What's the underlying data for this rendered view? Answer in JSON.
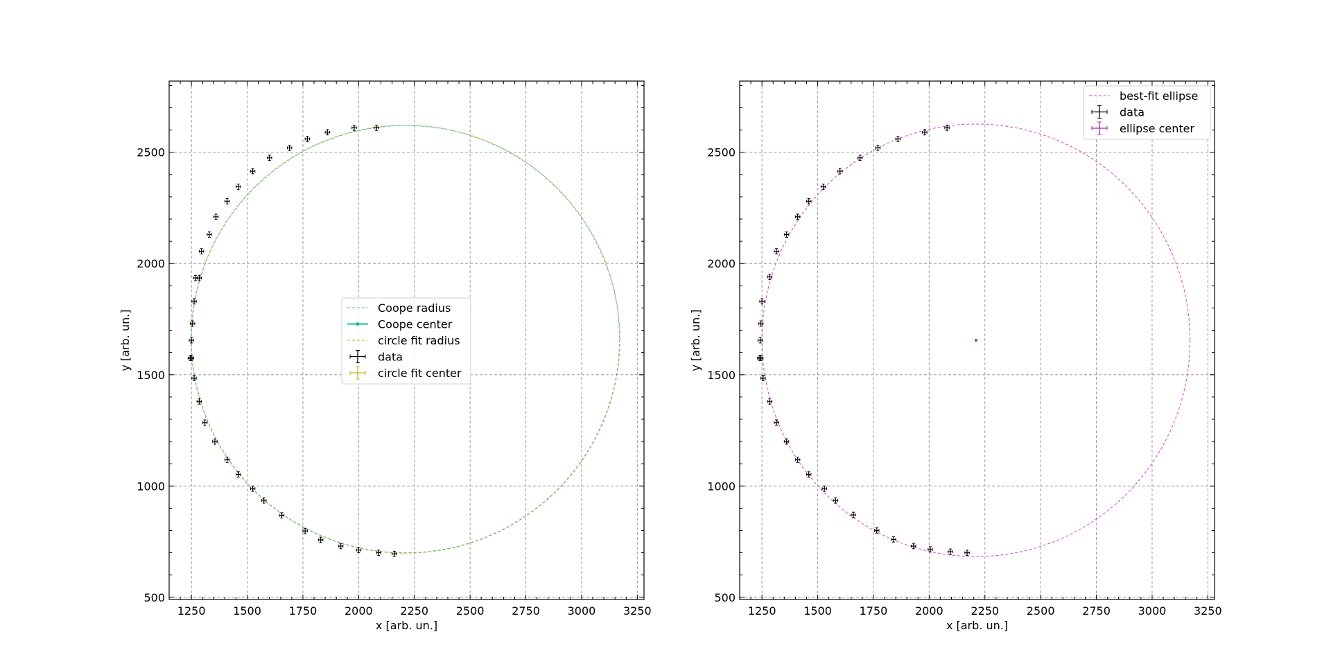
{
  "chart_data": [
    {
      "type": "scatter",
      "xlabel": "x [arb. un.]",
      "ylabel": "y [arb. un.]",
      "xlim": [
        1150,
        3280
      ],
      "ylim": [
        490,
        2820
      ],
      "xticks": [
        1250,
        1500,
        1750,
        2000,
        2250,
        2500,
        2750,
        3000,
        3250
      ],
      "yticks": [
        500,
        1000,
        1500,
        2000,
        2500
      ],
      "grid": true,
      "legend_position": "center",
      "series": [
        {
          "name": "Coope radius",
          "kind": "circle",
          "center": [
            2210,
            1660
          ],
          "radius": 960,
          "color": "#3fb9c9",
          "dash": "4,3"
        },
        {
          "name": "Coope center",
          "kind": "point",
          "x": [
            2210
          ],
          "y": [
            1660
          ],
          "color": "#17b8a6"
        },
        {
          "name": "circle fit radius",
          "kind": "circle",
          "center": [
            2210,
            1660
          ],
          "radius": 962,
          "color": "#b9b92b",
          "dash": "4,3"
        },
        {
          "name": "data",
          "kind": "errorbar",
          "color": "#000000",
          "x": [
            1245,
            1250,
            1255,
            1262,
            1268,
            1285,
            1295,
            1330,
            1360,
            1410,
            1460,
            1525,
            1600,
            1690,
            1770,
            1860,
            1980,
            2080,
            2160,
            2090,
            2000,
            1920,
            1830,
            1760,
            1655,
            1575,
            1525,
            1460,
            1410,
            1355,
            1310,
            1285,
            1262,
            1250
          ],
          "y": [
            1575,
            1655,
            1730,
            1830,
            1935,
            1935,
            2055,
            2130,
            2210,
            2280,
            2345,
            2415,
            2475,
            2520,
            2560,
            2590,
            2610,
            2610,
            695,
            700,
            712,
            730,
            758,
            798,
            868,
            935,
            988,
            1052,
            1118,
            1200,
            1285,
            1380,
            1485,
            1575
          ],
          "xerr": 10,
          "yerr": 12
        },
        {
          "name": "circle fit center",
          "kind": "errorbar-point",
          "x": [
            2210
          ],
          "y": [
            1660
          ],
          "color": "#c9b622"
        }
      ]
    },
    {
      "type": "scatter",
      "xlabel": "x [arb. un.]",
      "ylabel": "y [arb. un.]",
      "xlim": [
        1150,
        3280
      ],
      "ylim": [
        490,
        2820
      ],
      "xticks": [
        1250,
        1500,
        1750,
        2000,
        2250,
        2500,
        2750,
        3000,
        3250
      ],
      "yticks": [
        500,
        1000,
        1500,
        2000,
        2500
      ],
      "grid": true,
      "legend_position": "top-right",
      "series": [
        {
          "name": "best-fit ellipse",
          "kind": "ellipse",
          "center": [
            2210,
            1655
          ],
          "rx": 960,
          "ry": 972,
          "color": "#d63fd6",
          "dash": "4,3"
        },
        {
          "name": "data",
          "kind": "errorbar",
          "color": "#000000",
          "x": [
            1240,
            1242,
            1245,
            1250,
            1255,
            1285,
            1315,
            1360,
            1410,
            1460,
            1525,
            1600,
            1690,
            1770,
            1860,
            1980,
            2080,
            2170,
            2095,
            2005,
            1930,
            1840,
            1765,
            1660,
            1580,
            1530,
            1460,
            1410,
            1360,
            1315,
            1285,
            1255,
            1245
          ],
          "y": [
            1575,
            1655,
            1730,
            1830,
            1485,
            1940,
            2055,
            2130,
            2210,
            2280,
            2345,
            2415,
            2475,
            2520,
            2560,
            2590,
            2610,
            700,
            705,
            715,
            730,
            760,
            800,
            870,
            935,
            988,
            1052,
            1118,
            1200,
            1285,
            1380,
            1485,
            1575
          ],
          "xerr": 10,
          "yerr": 12
        },
        {
          "name": "ellipse center",
          "kind": "errorbar-point",
          "x": [
            2210
          ],
          "y": [
            1655
          ],
          "color": "#b020b0"
        }
      ]
    }
  ]
}
